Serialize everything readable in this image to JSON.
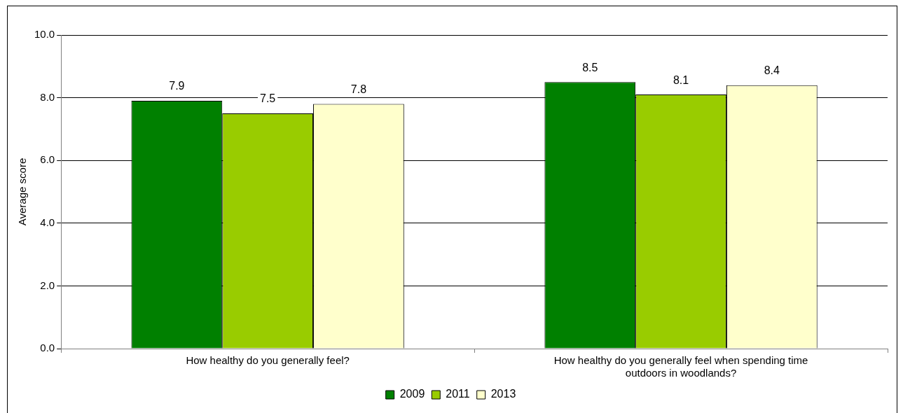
{
  "chart_data": {
    "type": "bar",
    "ylabel": "Average score",
    "categories": [
      "How healthy do you generally feel?",
      "How healthy do you generally feel when spending time outdoors in woodlands?"
    ],
    "series": [
      {
        "name": "2009",
        "color": "#008000",
        "values": [
          7.9,
          8.5
        ]
      },
      {
        "name": "2011",
        "color": "#99cc00",
        "values": [
          7.5,
          8.1
        ]
      },
      {
        "name": "2013",
        "color": "#ffffcc",
        "values": [
          7.8,
          8.4
        ]
      }
    ],
    "ylim": [
      0,
      10
    ],
    "yticks": [
      {
        "value": 0,
        "label": "0.0"
      },
      {
        "value": 2,
        "label": "2.0"
      },
      {
        "value": 4,
        "label": "4.0"
      },
      {
        "value": 6,
        "label": "6.0"
      },
      {
        "value": 8,
        "label": "8.0"
      },
      {
        "value": 10,
        "label": "10.0"
      }
    ],
    "grid": "y",
    "legend": "bottom",
    "data_labels": true
  }
}
